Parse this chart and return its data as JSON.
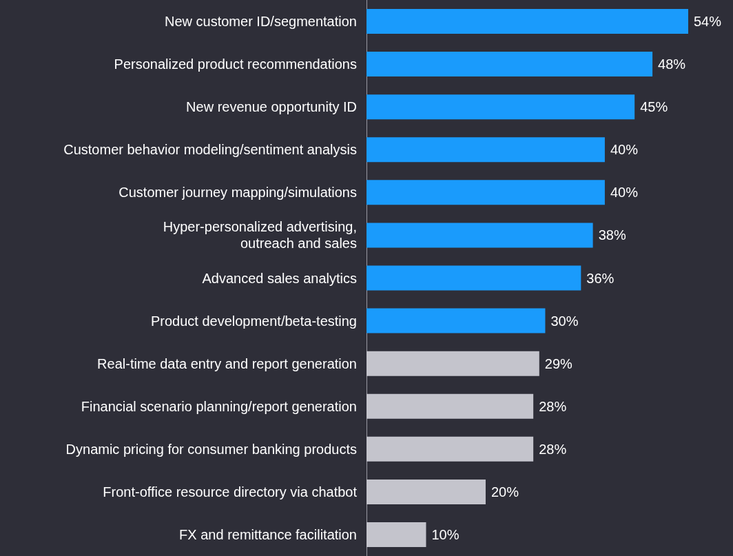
{
  "chart_data": {
    "type": "bar",
    "orientation": "horizontal",
    "categories": [
      "New customer ID/segmentation",
      "Personalized product recommendations",
      "New revenue opportunity ID",
      "Customer behavior modeling/sentiment analysis",
      "Customer journey mapping/simulations",
      "Hyper-personalized advertising,\noutreach and sales",
      "Advanced sales analytics",
      "Product development/beta-testing",
      "Real-time data entry and report generation",
      "Financial scenario planning/report generation",
      "Dynamic pricing for consumer banking products",
      "Front-office resource directory via chatbot",
      "FX and remittance facilitation"
    ],
    "values": [
      54,
      48,
      45,
      40,
      40,
      38,
      36,
      30,
      29,
      28,
      28,
      20,
      10
    ],
    "colors": [
      "#1a9bfc",
      "#1a9bfc",
      "#1a9bfc",
      "#1a9bfc",
      "#1a9bfc",
      "#1a9bfc",
      "#1a9bfc",
      "#1a9bfc",
      "#c4c4cc",
      "#c4c4cc",
      "#c4c4cc",
      "#c4c4cc",
      "#c4c4cc"
    ],
    "value_labels": [
      "54%",
      "48%",
      "45%",
      "40%",
      "40%",
      "38%",
      "36%",
      "30%",
      "29%",
      "28%",
      "28%",
      "20%",
      "10%"
    ]
  }
}
